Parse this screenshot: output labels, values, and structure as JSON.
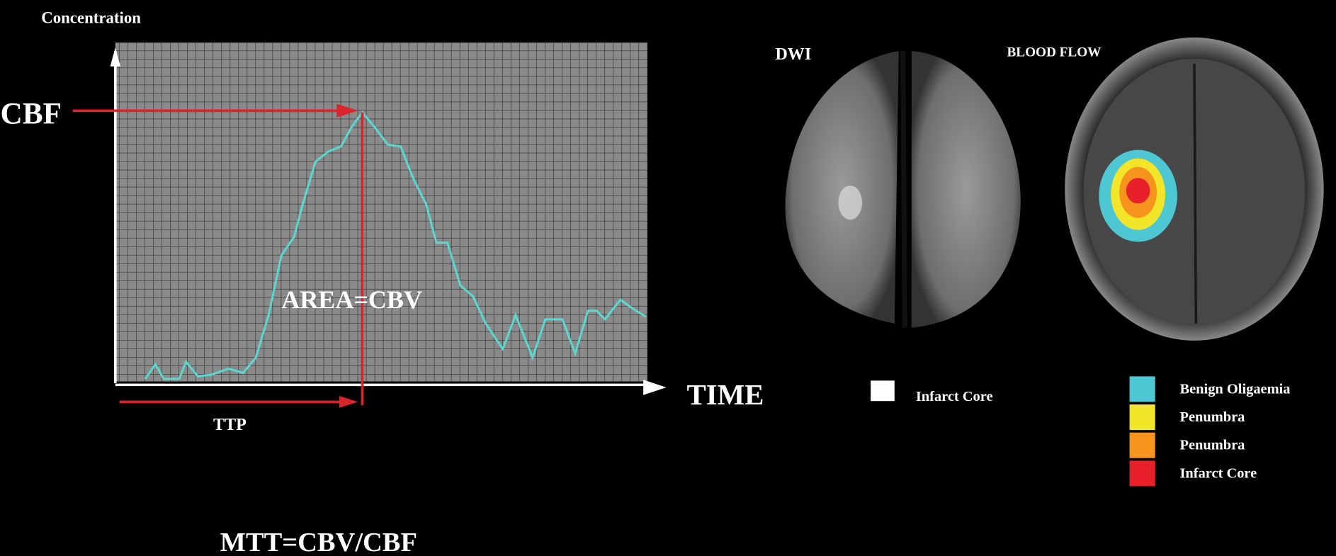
{
  "axes": {
    "y_label": "Concentration",
    "x_label": "TIME"
  },
  "annotations": {
    "cbf": "CBF",
    "area": "AREA=CBV",
    "ttp": "TTP",
    "formula": "MTT=CBV/CBF"
  },
  "panels": {
    "dwi": {
      "title": "DWI",
      "legend": {
        "label": "Infarct Core",
        "color": "#ffffff"
      }
    },
    "blood_flow": {
      "title": "BLOOD FLOW",
      "legend": [
        {
          "label": "Benign Oligaemia",
          "color": "#4fc6d4"
        },
        {
          "label": "Penumbra",
          "color": "#f2e52a"
        },
        {
          "label": "Penumbra",
          "color": "#f7941d"
        },
        {
          "label": "Infarct Core",
          "color": "#e8202a"
        }
      ]
    }
  }
}
